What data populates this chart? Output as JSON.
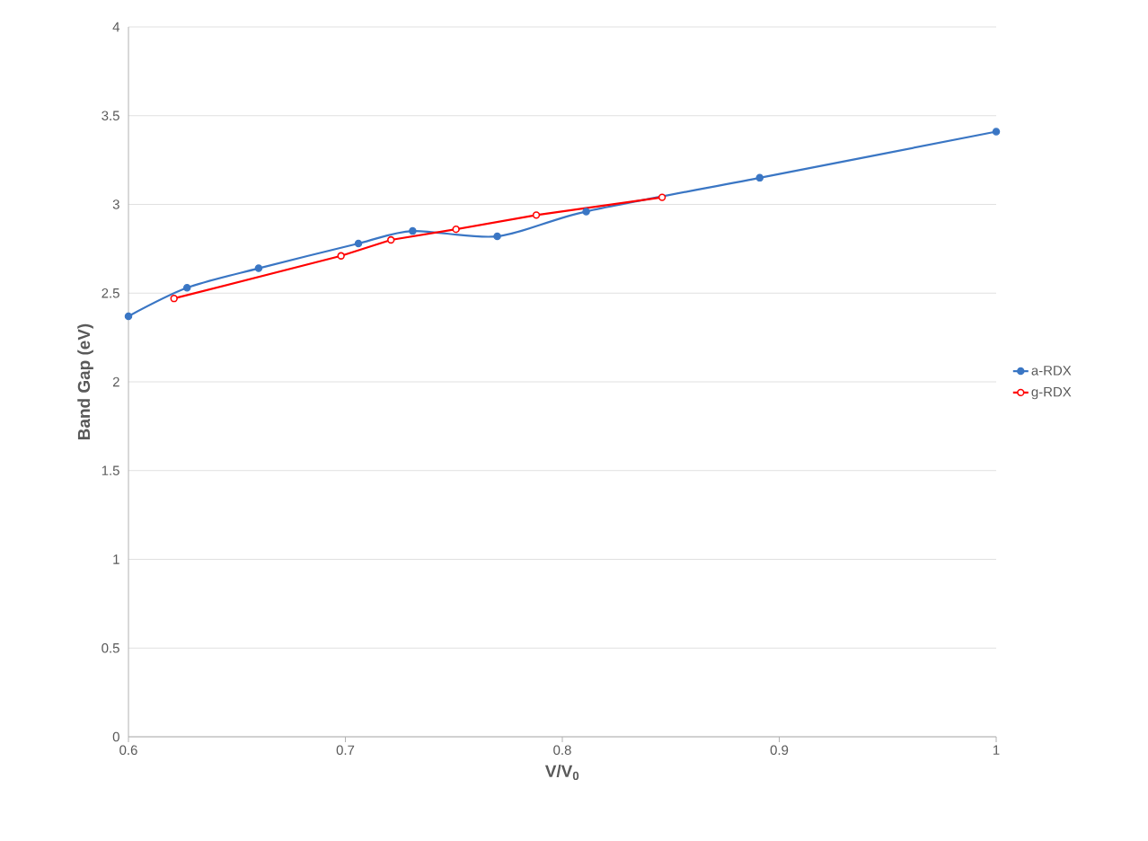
{
  "chart_data": {
    "type": "line",
    "xlabel": "V/V$_{0}$",
    "ylabel": "Band Gap (eV)",
    "xlim": [
      0.6,
      1
    ],
    "xticks": [
      0.6,
      0.7,
      0.8,
      0.9,
      1
    ],
    "ylim": [
      0,
      4
    ],
    "yticks": [
      0,
      0.5,
      1,
      1.5,
      2,
      2.5,
      3,
      3.5,
      4
    ],
    "grid": "y",
    "legend": "right",
    "marker": "circle",
    "line_style": "solid",
    "series": [
      {
        "name": "a-RDX",
        "color": "#3a76c4",
        "x": [
          0.6,
          0.627,
          0.66,
          0.706,
          0.731,
          0.77,
          0.811,
          0.891,
          1.0
        ],
        "values": [
          2.37,
          2.53,
          2.64,
          2.78,
          2.85,
          2.82,
          2.96,
          3.15,
          3.41
        ]
      },
      {
        "name": "g-RDX",
        "color": "#ff0000",
        "x": [
          0.621,
          0.698,
          0.721,
          0.751,
          0.788,
          0.846
        ],
        "values": [
          2.47,
          2.71,
          2.8,
          2.86,
          2.94,
          3.04
        ]
      }
    ]
  }
}
